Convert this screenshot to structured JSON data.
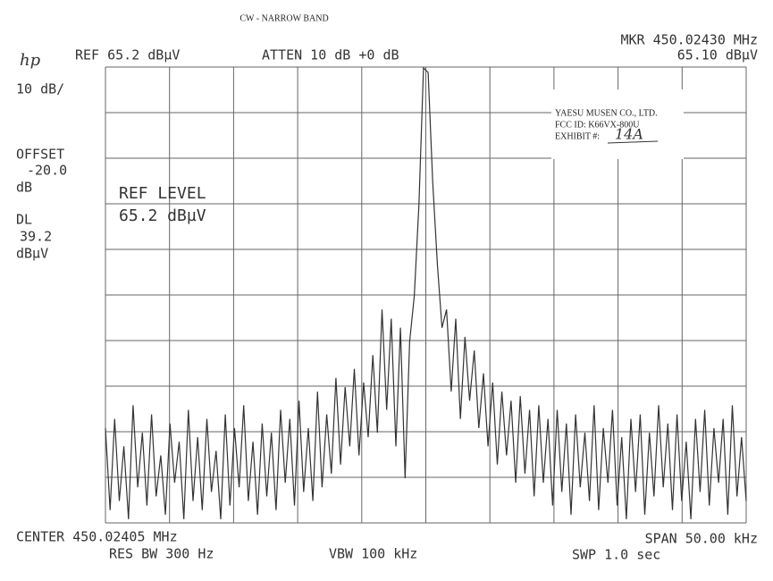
{
  "chart_data": {
    "type": "line",
    "title": "CW - NARROW BAND",
    "logo": "hp",
    "ref": "REF 65.2 dBµV",
    "atten": "ATTEN 10 dB +0 dB",
    "marker_freq": "MKR 450.02430 MHz",
    "marker_level": "65.10 dBµV",
    "scale": "10 dB/",
    "offset": [
      "OFFSET",
      "-20.0",
      "dB"
    ],
    "display_line": [
      "DL",
      "39.2",
      "dBµV"
    ],
    "ref_level": [
      "REF LEVEL",
      "65.2 dBµV"
    ],
    "stamp": [
      "YAESU MUSEN CO., LTD.",
      "FCC ID: K66VX-800U",
      "EXHIBIT #:",
      "14A"
    ],
    "center": "CENTER 450.02405 MHz",
    "span": "SPAN 50.00 kHz",
    "res_bw": "RES BW 300 Hz",
    "vbw": "VBW 100 kHz",
    "sweep": "SWP 1.0 sec",
    "ylim": [
      -34.8,
      65.2
    ],
    "grid": true,
    "color": "#333333",
    "values": [
      -14,
      -32,
      -12,
      -30,
      -18,
      -34,
      -9,
      -27,
      -15,
      -31,
      -11,
      -29,
      -20,
      -33,
      -13,
      -26,
      -17,
      -34,
      -10,
      -30,
      -16,
      -32,
      -12,
      -28,
      -19,
      -34,
      -11,
      -31,
      -14,
      -27,
      -9,
      -30,
      -17,
      -33,
      -13,
      -29,
      -15,
      -32,
      -10,
      -26,
      -12,
      -31,
      -8,
      -28,
      -14,
      -30,
      -6,
      -27,
      -11,
      -24,
      -3,
      -22,
      -5,
      -18,
      -1,
      -20,
      -4,
      -16,
      2,
      -15,
      12,
      -10,
      10,
      -18,
      8,
      -25,
      5,
      15,
      35,
      65,
      64,
      40,
      22,
      8,
      12,
      -6,
      10,
      -12,
      6,
      -8,
      3,
      -14,
      -2,
      -18,
      -4,
      -22,
      -6,
      -20,
      -8,
      -26,
      -7,
      -24,
      -10,
      -29,
      -9,
      -26,
      -12,
      -31,
      -10,
      -28,
      -13,
      -33,
      -11,
      -27,
      -15,
      -30,
      -9,
      -32,
      -14,
      -26,
      -10,
      -31,
      -16,
      -34,
      -12,
      -28,
      -11,
      -33,
      -15,
      -29,
      -9,
      -27,
      -13,
      -32,
      -11,
      -30,
      -17,
      -34,
      -12,
      -28,
      -10,
      -31,
      -14,
      -26,
      -12,
      -33,
      -9,
      -29,
      -16,
      -30
    ]
  }
}
